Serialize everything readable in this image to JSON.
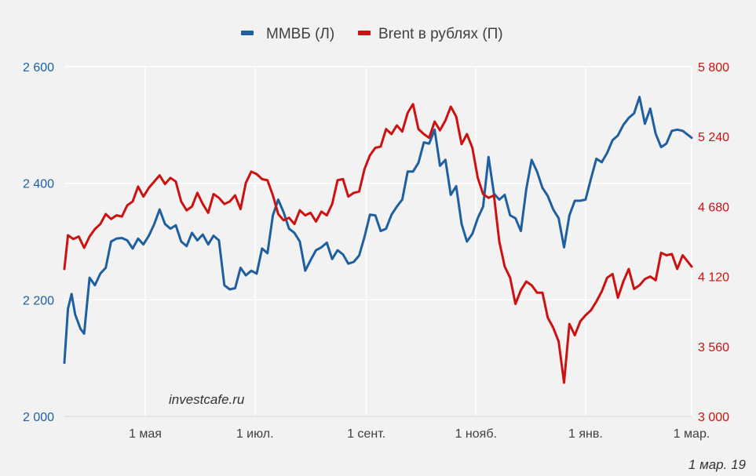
{
  "chart_data": {
    "type": "line",
    "title": "",
    "legend": {
      "placement": "top-center",
      "items": [
        {
          "label": "ММВБ (Л)",
          "color": "#1f5fa0"
        },
        {
          "label": "Brent в рублях (П)",
          "color": "#cc1111"
        }
      ]
    },
    "x_axis": {
      "range": [
        "2018-03-17",
        "2019-03-01"
      ],
      "tick_labels": [
        "1 мая",
        "1 июл.",
        "1 сент.",
        "1 нояб.",
        "1 янв.",
        "1 мар."
      ],
      "tick_dates": [
        "2018-05-01",
        "2018-07-01",
        "2018-09-01",
        "2018-11-01",
        "2019-01-01",
        "2019-03-01"
      ]
    },
    "y_left": {
      "range": [
        2000,
        2600
      ],
      "ticks": [
        2000,
        2200,
        2400,
        2600
      ],
      "tick_labels": [
        "2 000",
        "2 200",
        "2 400",
        "2 600"
      ],
      "color": "#1f5fa0"
    },
    "y_right": {
      "range": [
        3000,
        5800
      ],
      "ticks": [
        3000,
        3560,
        4120,
        4680,
        5240,
        5800
      ],
      "tick_labels": [
        "3 000",
        "3 560",
        "4 120",
        "4 680",
        "5 240",
        "5 800"
      ],
      "color": "#cc1111"
    },
    "grid": true,
    "series": [
      {
        "name": "ММВБ (Л)",
        "axis": "left",
        "color": "#1f5fa0",
        "points": [
          [
            "2018-03-17",
            2092
          ],
          [
            "2018-03-19",
            2185
          ],
          [
            "2018-03-21",
            2210
          ],
          [
            "2018-03-23",
            2175
          ],
          [
            "2018-03-26",
            2150
          ],
          [
            "2018-03-28",
            2142
          ],
          [
            "2018-03-31",
            2238
          ],
          [
            "2018-04-03",
            2225
          ],
          [
            "2018-04-06",
            2245
          ],
          [
            "2018-04-09",
            2255
          ],
          [
            "2018-04-12",
            2300
          ],
          [
            "2018-04-15",
            2305
          ],
          [
            "2018-04-18",
            2306
          ],
          [
            "2018-04-21",
            2302
          ],
          [
            "2018-04-24",
            2288
          ],
          [
            "2018-04-27",
            2305
          ],
          [
            "2018-04-30",
            2295
          ],
          [
            "2018-05-03",
            2310
          ],
          [
            "2018-05-06",
            2330
          ],
          [
            "2018-05-09",
            2355
          ],
          [
            "2018-05-12",
            2330
          ],
          [
            "2018-05-15",
            2322
          ],
          [
            "2018-05-18",
            2328
          ],
          [
            "2018-05-21",
            2300
          ],
          [
            "2018-05-24",
            2292
          ],
          [
            "2018-05-27",
            2315
          ],
          [
            "2018-05-30",
            2302
          ],
          [
            "2018-06-02",
            2312
          ],
          [
            "2018-06-05",
            2295
          ],
          [
            "2018-06-08",
            2310
          ],
          [
            "2018-06-11",
            2302
          ],
          [
            "2018-06-14",
            2225
          ],
          [
            "2018-06-17",
            2218
          ],
          [
            "2018-06-20",
            2220
          ],
          [
            "2018-06-23",
            2255
          ],
          [
            "2018-06-26",
            2242
          ],
          [
            "2018-06-29",
            2250
          ],
          [
            "2018-07-02",
            2245
          ],
          [
            "2018-07-05",
            2288
          ],
          [
            "2018-07-08",
            2280
          ],
          [
            "2018-07-11",
            2345
          ],
          [
            "2018-07-14",
            2372
          ],
          [
            "2018-07-17",
            2350
          ],
          [
            "2018-07-20",
            2322
          ],
          [
            "2018-07-23",
            2315
          ],
          [
            "2018-07-26",
            2300
          ],
          [
            "2018-07-29",
            2250
          ],
          [
            "2018-08-01",
            2268
          ],
          [
            "2018-08-04",
            2285
          ],
          [
            "2018-08-07",
            2290
          ],
          [
            "2018-08-10",
            2298
          ],
          [
            "2018-08-13",
            2270
          ],
          [
            "2018-08-16",
            2285
          ],
          [
            "2018-08-19",
            2278
          ],
          [
            "2018-08-22",
            2262
          ],
          [
            "2018-08-25",
            2265
          ],
          [
            "2018-08-28",
            2276
          ],
          [
            "2018-08-31",
            2308
          ],
          [
            "2018-09-03",
            2346
          ],
          [
            "2018-09-06",
            2345
          ],
          [
            "2018-09-09",
            2318
          ],
          [
            "2018-09-12",
            2322
          ],
          [
            "2018-09-15",
            2346
          ],
          [
            "2018-09-18",
            2360
          ],
          [
            "2018-09-21",
            2372
          ],
          [
            "2018-09-24",
            2420
          ],
          [
            "2018-09-27",
            2420
          ],
          [
            "2018-09-30",
            2435
          ],
          [
            "2018-10-03",
            2470
          ],
          [
            "2018-10-06",
            2468
          ],
          [
            "2018-10-09",
            2492
          ],
          [
            "2018-10-12",
            2430
          ],
          [
            "2018-10-15",
            2440
          ],
          [
            "2018-10-18",
            2380
          ],
          [
            "2018-10-21",
            2395
          ],
          [
            "2018-10-24",
            2330
          ],
          [
            "2018-10-27",
            2300
          ],
          [
            "2018-10-30",
            2313
          ],
          [
            "2018-11-02",
            2340
          ],
          [
            "2018-11-05",
            2360
          ],
          [
            "2018-11-08",
            2445
          ],
          [
            "2018-11-11",
            2382
          ],
          [
            "2018-11-14",
            2372
          ],
          [
            "2018-11-17",
            2380
          ],
          [
            "2018-11-20",
            2345
          ],
          [
            "2018-11-23",
            2340
          ],
          [
            "2018-11-26",
            2318
          ],
          [
            "2018-11-29",
            2390
          ],
          [
            "2018-12-02",
            2440
          ],
          [
            "2018-12-05",
            2420
          ],
          [
            "2018-12-08",
            2392
          ],
          [
            "2018-12-11",
            2378
          ],
          [
            "2018-12-14",
            2355
          ],
          [
            "2018-12-17",
            2340
          ],
          [
            "2018-12-20",
            2290
          ],
          [
            "2018-12-23",
            2345
          ],
          [
            "2018-12-26",
            2370
          ],
          [
            "2018-12-29",
            2370
          ],
          [
            "2019-01-01",
            2372
          ],
          [
            "2019-01-04",
            2408
          ],
          [
            "2019-01-07",
            2442
          ],
          [
            "2019-01-10",
            2436
          ],
          [
            "2019-01-13",
            2452
          ],
          [
            "2019-01-16",
            2474
          ],
          [
            "2019-01-19",
            2482
          ],
          [
            "2019-01-22",
            2500
          ],
          [
            "2019-01-25",
            2512
          ],
          [
            "2019-01-28",
            2520
          ],
          [
            "2019-01-31",
            2548
          ],
          [
            "2019-02-03",
            2502
          ],
          [
            "2019-02-06",
            2528
          ],
          [
            "2019-02-09",
            2485
          ],
          [
            "2019-02-12",
            2462
          ],
          [
            "2019-02-15",
            2468
          ],
          [
            "2019-02-18",
            2490
          ],
          [
            "2019-02-21",
            2492
          ],
          [
            "2019-02-24",
            2490
          ],
          [
            "2019-03-01",
            2478
          ]
        ]
      },
      {
        "name": "Brent в рублях (П)",
        "axis": "right",
        "color": "#cc1111",
        "points": [
          [
            "2018-03-17",
            4180
          ],
          [
            "2018-03-19",
            4450
          ],
          [
            "2018-03-22",
            4420
          ],
          [
            "2018-03-25",
            4440
          ],
          [
            "2018-03-28",
            4350
          ],
          [
            "2018-03-31",
            4440
          ],
          [
            "2018-04-03",
            4500
          ],
          [
            "2018-04-06",
            4540
          ],
          [
            "2018-04-09",
            4620
          ],
          [
            "2018-04-12",
            4580
          ],
          [
            "2018-04-15",
            4610
          ],
          [
            "2018-04-18",
            4600
          ],
          [
            "2018-04-21",
            4690
          ],
          [
            "2018-04-24",
            4720
          ],
          [
            "2018-04-27",
            4840
          ],
          [
            "2018-04-30",
            4760
          ],
          [
            "2018-05-03",
            4830
          ],
          [
            "2018-05-06",
            4880
          ],
          [
            "2018-05-09",
            4930
          ],
          [
            "2018-05-12",
            4860
          ],
          [
            "2018-05-15",
            4910
          ],
          [
            "2018-05-18",
            4880
          ],
          [
            "2018-05-21",
            4720
          ],
          [
            "2018-05-24",
            4650
          ],
          [
            "2018-05-27",
            4680
          ],
          [
            "2018-05-30",
            4790
          ],
          [
            "2018-06-02",
            4700
          ],
          [
            "2018-06-05",
            4630
          ],
          [
            "2018-06-08",
            4780
          ],
          [
            "2018-06-11",
            4750
          ],
          [
            "2018-06-14",
            4700
          ],
          [
            "2018-06-17",
            4720
          ],
          [
            "2018-06-20",
            4770
          ],
          [
            "2018-06-23",
            4660
          ],
          [
            "2018-06-26",
            4870
          ],
          [
            "2018-06-29",
            4960
          ],
          [
            "2018-07-02",
            4940
          ],
          [
            "2018-07-05",
            4900
          ],
          [
            "2018-07-08",
            4890
          ],
          [
            "2018-07-11",
            4770
          ],
          [
            "2018-07-14",
            4620
          ],
          [
            "2018-07-17",
            4570
          ],
          [
            "2018-07-20",
            4590
          ],
          [
            "2018-07-23",
            4540
          ],
          [
            "2018-07-26",
            4650
          ],
          [
            "2018-07-29",
            4610
          ],
          [
            "2018-08-01",
            4630
          ],
          [
            "2018-08-04",
            4560
          ],
          [
            "2018-08-07",
            4640
          ],
          [
            "2018-08-10",
            4610
          ],
          [
            "2018-08-13",
            4700
          ],
          [
            "2018-08-16",
            4890
          ],
          [
            "2018-08-19",
            4900
          ],
          [
            "2018-08-22",
            4760
          ],
          [
            "2018-08-25",
            4790
          ],
          [
            "2018-08-28",
            4800
          ],
          [
            "2018-08-31",
            4980
          ],
          [
            "2018-09-03",
            5090
          ],
          [
            "2018-09-06",
            5150
          ],
          [
            "2018-09-09",
            5160
          ],
          [
            "2018-09-12",
            5300
          ],
          [
            "2018-09-15",
            5260
          ],
          [
            "2018-09-18",
            5330
          ],
          [
            "2018-09-21",
            5280
          ],
          [
            "2018-09-24",
            5430
          ],
          [
            "2018-09-27",
            5500
          ],
          [
            "2018-09-30",
            5300
          ],
          [
            "2018-10-03",
            5260
          ],
          [
            "2018-10-06",
            5230
          ],
          [
            "2018-10-09",
            5360
          ],
          [
            "2018-10-12",
            5290
          ],
          [
            "2018-10-15",
            5370
          ],
          [
            "2018-10-18",
            5480
          ],
          [
            "2018-10-21",
            5400
          ],
          [
            "2018-10-24",
            5180
          ],
          [
            "2018-10-27",
            5260
          ],
          [
            "2018-10-30",
            5150
          ],
          [
            "2018-11-02",
            4910
          ],
          [
            "2018-11-05",
            4780
          ],
          [
            "2018-11-08",
            4750
          ],
          [
            "2018-11-11",
            4770
          ],
          [
            "2018-11-14",
            4400
          ],
          [
            "2018-11-17",
            4200
          ],
          [
            "2018-11-20",
            4110
          ],
          [
            "2018-11-23",
            3900
          ],
          [
            "2018-11-26",
            4010
          ],
          [
            "2018-11-29",
            4080
          ],
          [
            "2018-12-02",
            4050
          ],
          [
            "2018-12-05",
            3990
          ],
          [
            "2018-12-08",
            3990
          ],
          [
            "2018-12-11",
            3790
          ],
          [
            "2018-12-14",
            3710
          ],
          [
            "2018-12-17",
            3600
          ],
          [
            "2018-12-20",
            3270
          ],
          [
            "2018-12-23",
            3740
          ],
          [
            "2018-12-26",
            3650
          ],
          [
            "2018-12-29",
            3760
          ],
          [
            "2019-01-01",
            3810
          ],
          [
            "2019-01-04",
            3850
          ],
          [
            "2019-01-07",
            3920
          ],
          [
            "2019-01-10",
            4000
          ],
          [
            "2019-01-13",
            4110
          ],
          [
            "2019-01-16",
            4140
          ],
          [
            "2019-01-19",
            3950
          ],
          [
            "2019-01-22",
            4080
          ],
          [
            "2019-01-25",
            4180
          ],
          [
            "2019-01-28",
            4020
          ],
          [
            "2019-01-31",
            4050
          ],
          [
            "2019-02-03",
            4100
          ],
          [
            "2019-02-06",
            4120
          ],
          [
            "2019-02-09",
            4090
          ],
          [
            "2019-02-12",
            4310
          ],
          [
            "2019-02-15",
            4290
          ],
          [
            "2019-02-18",
            4300
          ],
          [
            "2019-02-21",
            4180
          ],
          [
            "2019-02-24",
            4290
          ],
          [
            "2019-03-01",
            4200
          ]
        ]
      }
    ],
    "annotations": [
      "investcafe.ru",
      "1 мар. 19"
    ]
  }
}
